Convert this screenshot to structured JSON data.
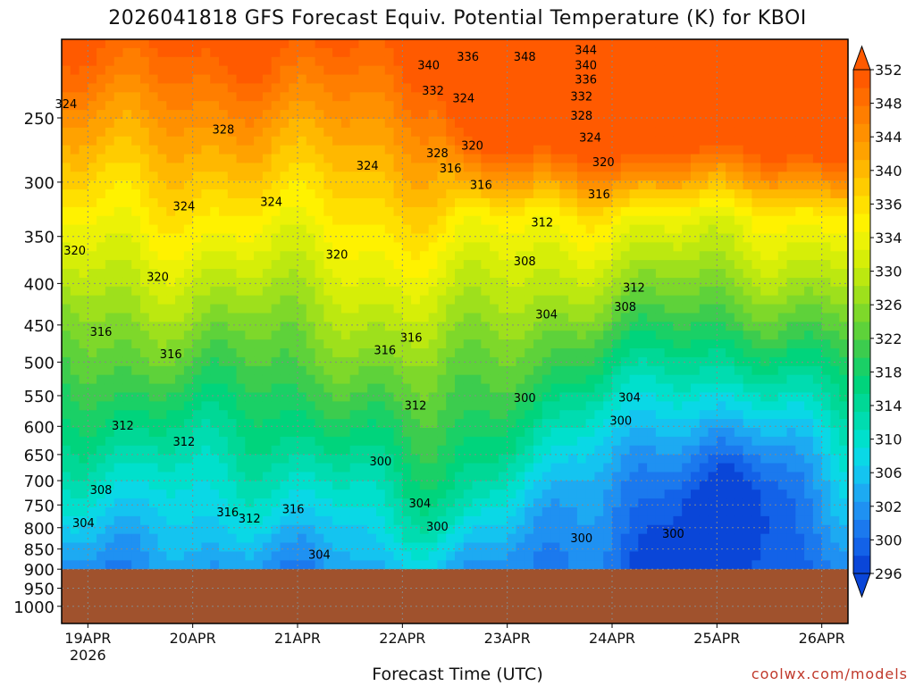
{
  "title": "2026041818 GFS Forecast Equiv. Potential Temperature (K) for KBOI",
  "credit": "coolwx.com/models",
  "chart_data": {
    "type": "heatmap",
    "title": "2026041818 GFS Forecast Equiv. Potential Temperature (K) for KBOI",
    "xlabel": "Forecast Time (UTC)",
    "ylabel": "",
    "y_axis": {
      "units": "hPa",
      "range": [
        1050,
        200
      ],
      "ticks": [
        250,
        300,
        350,
        400,
        450,
        500,
        550,
        600,
        650,
        700,
        750,
        800,
        850,
        900,
        950,
        1000
      ]
    },
    "x_axis": {
      "range": [
        "2026-04-18T18Z",
        "2026-04-26T06Z"
      ],
      "ticks": [
        {
          "label": "19APR",
          "sub": "2026",
          "hours": 6
        },
        {
          "label": "20APR",
          "sub": "",
          "hours": 30
        },
        {
          "label": "21APR",
          "sub": "",
          "hours": 54
        },
        {
          "label": "22APR",
          "sub": "",
          "hours": 78
        },
        {
          "label": "23APR",
          "sub": "",
          "hours": 102
        },
        {
          "label": "24APR",
          "sub": "",
          "hours": 126
        },
        {
          "label": "25APR",
          "sub": "",
          "hours": 150
        },
        {
          "label": "26APR",
          "sub": "",
          "hours": 174
        }
      ],
      "max_hours": 180
    },
    "colorbar": {
      "levels": [
        296,
        298,
        300,
        302,
        304,
        306,
        308,
        310,
        312,
        314,
        316,
        318,
        320,
        322,
        324,
        326,
        328,
        330,
        332,
        334,
        336,
        338,
        340,
        342,
        344,
        346,
        348,
        350,
        352
      ],
      "labels": [
        296,
        300,
        302,
        306,
        310,
        314,
        318,
        322,
        326,
        330,
        334,
        336,
        340,
        344,
        348,
        352
      ],
      "colors": [
        "#0a46d8",
        "#1362e8",
        "#1b79ee",
        "#1f91f2",
        "#1daaf2",
        "#14c4f0",
        "#0ad8e6",
        "#00e0cc",
        "#00dcb0",
        "#00d896",
        "#00d47c",
        "#1ad066",
        "#3ccc4e",
        "#5ed23a",
        "#7ed82a",
        "#9ee01c",
        "#bce810",
        "#d6ee08",
        "#ecf206",
        "#fff200",
        "#ffe000",
        "#ffcc00",
        "#ffb800",
        "#ffa200",
        "#ff9000",
        "#ff7e00",
        "#ff6c00",
        "#ff5a00"
      ]
    },
    "contour_labels": [
      {
        "v": "324",
        "h": 1,
        "p": 240
      },
      {
        "v": "328",
        "h": 37,
        "p": 258
      },
      {
        "v": "324",
        "h": 48,
        "p": 317
      },
      {
        "v": "324",
        "h": 28,
        "p": 321
      },
      {
        "v": "320",
        "h": 3,
        "p": 364
      },
      {
        "v": "320",
        "h": 22,
        "p": 392
      },
      {
        "v": "320",
        "h": 63,
        "p": 368
      },
      {
        "v": "324",
        "h": 70,
        "p": 286
      },
      {
        "v": "328",
        "h": 86,
        "p": 276
      },
      {
        "v": "316",
        "h": 9,
        "p": 458
      },
      {
        "v": "316",
        "h": 25,
        "p": 488
      },
      {
        "v": "316",
        "h": 74,
        "p": 483
      },
      {
        "v": "316",
        "h": 80,
        "p": 466
      },
      {
        "v": "312",
        "h": 14,
        "p": 598
      },
      {
        "v": "312",
        "h": 28,
        "p": 626
      },
      {
        "v": "308",
        "h": 9,
        "p": 718
      },
      {
        "v": "304",
        "h": 5,
        "p": 788
      },
      {
        "v": "316",
        "h": 38,
        "p": 765
      },
      {
        "v": "312",
        "h": 43,
        "p": 778
      },
      {
        "v": "316",
        "h": 53,
        "p": 758
      },
      {
        "v": "304",
        "h": 59,
        "p": 863
      },
      {
        "v": "312",
        "h": 81,
        "p": 565
      },
      {
        "v": "300",
        "h": 73,
        "p": 662
      },
      {
        "v": "304",
        "h": 82,
        "p": 746
      },
      {
        "v": "300",
        "h": 86,
        "p": 796
      },
      {
        "v": "320",
        "h": 94,
        "p": 270
      },
      {
        "v": "316",
        "h": 89,
        "p": 288
      },
      {
        "v": "332",
        "h": 85,
        "p": 231
      },
      {
        "v": "340",
        "h": 84,
        "p": 215
      },
      {
        "v": "336",
        "h": 93,
        "p": 210
      },
      {
        "v": "324",
        "h": 92,
        "p": 236
      },
      {
        "v": "348",
        "h": 106,
        "p": 210
      },
      {
        "v": "344",
        "h": 120,
        "p": 206
      },
      {
        "v": "340",
        "h": 120,
        "p": 215
      },
      {
        "v": "336",
        "h": 120,
        "p": 224
      },
      {
        "v": "332",
        "h": 119,
        "p": 235
      },
      {
        "v": "328",
        "h": 119,
        "p": 248
      },
      {
        "v": "324",
        "h": 121,
        "p": 264
      },
      {
        "v": "320",
        "h": 124,
        "p": 283
      },
      {
        "v": "316",
        "h": 123,
        "p": 310
      },
      {
        "v": "316",
        "h": 96,
        "p": 302
      },
      {
        "v": "312",
        "h": 110,
        "p": 336
      },
      {
        "v": "308",
        "h": 106,
        "p": 375
      },
      {
        "v": "304",
        "h": 111,
        "p": 436
      },
      {
        "v": "300",
        "h": 106,
        "p": 553
      },
      {
        "v": "312",
        "h": 131,
        "p": 404
      },
      {
        "v": "308",
        "h": 129,
        "p": 427
      },
      {
        "v": "304",
        "h": 130,
        "p": 552
      },
      {
        "v": "300",
        "h": 128,
        "p": 590
      },
      {
        "v": "300",
        "h": 119,
        "p": 823
      },
      {
        "v": "300",
        "h": 140,
        "p": 813
      }
    ],
    "grid": true,
    "legend": "right colorbar"
  }
}
